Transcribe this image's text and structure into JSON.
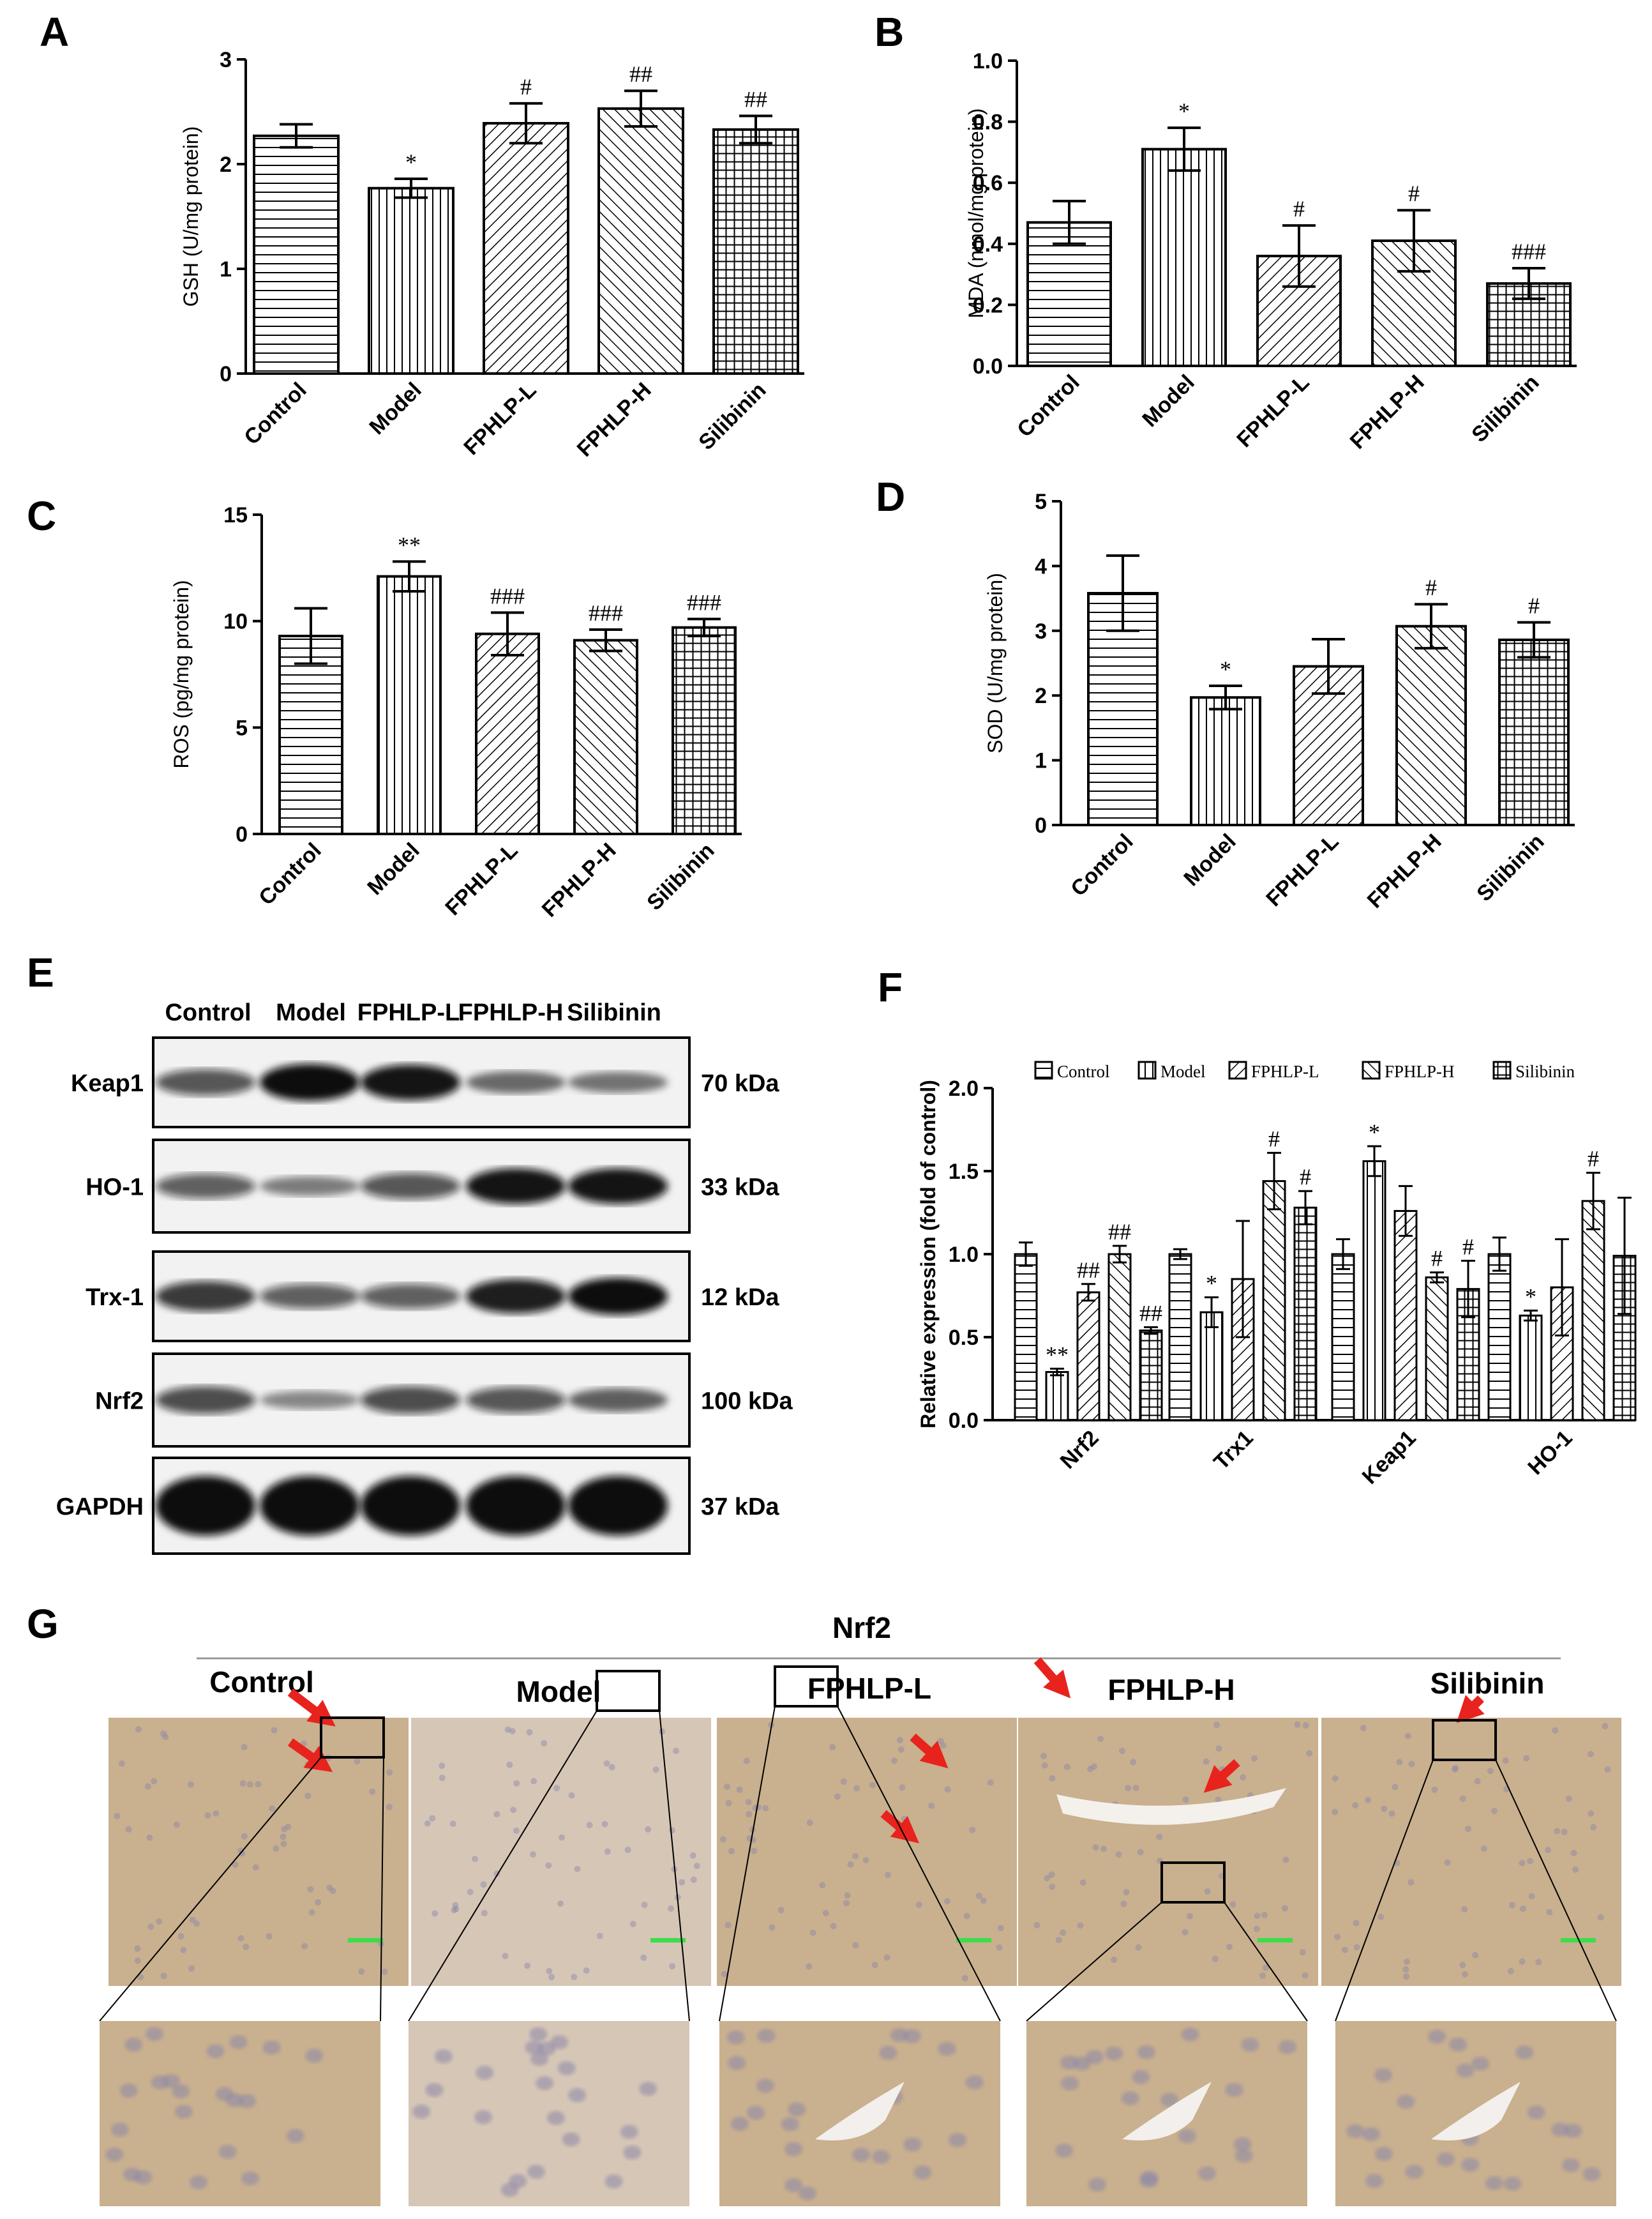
{
  "figure": {
    "panel_letters": [
      "A",
      "B",
      "C",
      "D",
      "E",
      "F",
      "G"
    ]
  },
  "chart_data": [
    {
      "panel": "A",
      "type": "bar",
      "categories": [
        "Control",
        "Model",
        "FPHLP-L",
        "FPHLP-H",
        "Silibinin"
      ],
      "values": [
        2.27,
        1.77,
        2.39,
        2.53,
        2.33
      ],
      "errors": [
        0.11,
        0.09,
        0.19,
        0.17,
        0.13
      ],
      "significance": [
        "",
        "*",
        "#",
        "##",
        "##"
      ],
      "ylabel": "GSH (U/mg protein)",
      "ylim": [
        0,
        3
      ],
      "yticks": [
        "0",
        "1",
        "2",
        "3"
      ]
    },
    {
      "panel": "B",
      "type": "bar",
      "categories": [
        "Control",
        "Model",
        "FPHLP-L",
        "FPHLP-H",
        "Silibinin"
      ],
      "values": [
        0.47,
        0.71,
        0.36,
        0.41,
        0.27
      ],
      "errors": [
        0.07,
        0.07,
        0.1,
        0.1,
        0.05
      ],
      "significance": [
        "",
        "*",
        "#",
        "#",
        "###"
      ],
      "ylabel": "MDA (nmol/mg protein)",
      "ylim": [
        0,
        1.0
      ],
      "yticks": [
        "0.0",
        "0.2",
        "0.4",
        "0.6",
        "0.8",
        "1.0"
      ]
    },
    {
      "panel": "C",
      "type": "bar",
      "categories": [
        "Control",
        "Model",
        "FPHLP-L",
        "FPHLP-H",
        "Silibinin"
      ],
      "values": [
        9.3,
        12.1,
        9.4,
        9.1,
        9.7
      ],
      "errors": [
        1.3,
        0.7,
        1.0,
        0.5,
        0.4
      ],
      "significance": [
        "",
        "**",
        "###",
        "###",
        "###"
      ],
      "ylabel": "ROS (pg/mg protein)",
      "ylim": [
        0,
        15
      ],
      "yticks": [
        "0",
        "5",
        "10",
        "15"
      ]
    },
    {
      "panel": "D",
      "type": "bar",
      "categories": [
        "Control",
        "Model",
        "FPHLP-L",
        "FPHLP-H",
        "Silibinin"
      ],
      "values": [
        3.58,
        1.97,
        2.45,
        3.07,
        2.86
      ],
      "errors": [
        0.58,
        0.18,
        0.42,
        0.34,
        0.27
      ],
      "significance": [
        "",
        "*",
        "",
        "#",
        "#"
      ],
      "ylabel": "SOD (U/mg protein)",
      "ylim": [
        0,
        5
      ],
      "yticks": [
        "0",
        "1",
        "2",
        "3",
        "4",
        "5"
      ]
    },
    {
      "panel": "F",
      "type": "bar",
      "categories": [
        "Nrf2",
        "Trx1",
        "Keap1",
        "HO-1"
      ],
      "series": [
        {
          "name": "Control",
          "values": [
            1.0,
            1.0,
            1.0,
            1.0
          ],
          "errors": [
            0.07,
            0.03,
            0.09,
            0.1
          ],
          "significance": [
            "",
            "",
            "",
            ""
          ]
        },
        {
          "name": "Model",
          "values": [
            0.29,
            0.65,
            1.56,
            0.63
          ],
          "errors": [
            0.02,
            0.09,
            0.09,
            0.03
          ],
          "significance": [
            "**",
            "*",
            "*",
            "*"
          ]
        },
        {
          "name": "FPHLP-L",
          "values": [
            0.77,
            0.85,
            1.26,
            0.8
          ],
          "errors": [
            0.05,
            0.35,
            0.15,
            0.29
          ],
          "significance": [
            "##",
            "",
            "",
            ""
          ]
        },
        {
          "name": "FPHLP-H",
          "values": [
            1.0,
            1.44,
            0.86,
            1.32
          ],
          "errors": [
            0.05,
            0.17,
            0.03,
            0.17
          ],
          "significance": [
            "##",
            "#",
            "#",
            "#"
          ]
        },
        {
          "name": "Silibinin",
          "values": [
            0.54,
            1.28,
            0.79,
            0.99
          ],
          "errors": [
            0.02,
            0.1,
            0.17,
            0.35
          ],
          "significance": [
            "##",
            "#",
            "#",
            ""
          ]
        }
      ],
      "ylabel": "Relative expression (fold of control)",
      "ylim": [
        0,
        2.0
      ],
      "yticks": [
        "0.0",
        "0.5",
        "1.0",
        "1.5",
        "2.0"
      ],
      "legend": "top"
    }
  ],
  "western_blot": {
    "lanes": [
      "Control",
      "Model",
      "FPHLP-L",
      "FPHLP-H",
      "Silibinin"
    ],
    "rows": [
      {
        "protein": "Keap1",
        "size": "70 kDa",
        "intensity": [
          0.55,
          0.95,
          0.9,
          0.4,
          0.35
        ]
      },
      {
        "protein": "HO-1",
        "size": "33 kDa",
        "intensity": [
          0.5,
          0.3,
          0.55,
          0.9,
          0.9
        ]
      },
      {
        "protein": "Trx-1",
        "size": "12 kDa",
        "intensity": [
          0.7,
          0.5,
          0.5,
          0.85,
          0.95
        ]
      },
      {
        "protein": "Nrf2",
        "size": "100 kDa",
        "intensity": [
          0.6,
          0.25,
          0.6,
          0.55,
          0.45
        ]
      },
      {
        "protein": "GAPDH",
        "size": "37 kDa",
        "intensity": [
          1,
          1,
          1,
          1,
          1
        ]
      }
    ]
  },
  "ihc": {
    "title": "Nrf2",
    "groups": [
      "Control",
      "Model",
      "FPHLP-L",
      "FPHLP-H",
      "Silibinin"
    ],
    "colors": {
      "tissue": "#c9b08e",
      "tissue_light": "#d6c6b6",
      "nucleus": "#8a86a8",
      "arrow": "#e8231d",
      "scale_bar": "#3ddc4a"
    }
  }
}
